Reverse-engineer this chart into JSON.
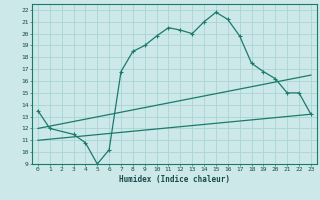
{
  "xlabel": "Humidex (Indice chaleur)",
  "bg_color": "#cce8e8",
  "line_color": "#1a7a6e",
  "grid_color": "#aad4d4",
  "xlim": [
    -0.5,
    23.5
  ],
  "ylim": [
    9,
    22.5
  ],
  "xticks": [
    0,
    1,
    2,
    3,
    4,
    5,
    6,
    7,
    8,
    9,
    10,
    11,
    12,
    13,
    14,
    15,
    16,
    17,
    18,
    19,
    20,
    21,
    22,
    23
  ],
  "yticks": [
    9,
    10,
    11,
    12,
    13,
    14,
    15,
    16,
    17,
    18,
    19,
    20,
    21,
    22
  ],
  "line1_x": [
    0,
    1,
    3,
    4,
    5,
    6,
    7,
    8,
    9,
    10,
    11,
    12,
    13,
    14,
    15,
    16,
    17,
    18,
    19,
    20,
    21,
    22,
    23
  ],
  "line1_y": [
    13.5,
    12.0,
    11.5,
    10.8,
    9.0,
    10.2,
    16.8,
    18.5,
    19.0,
    19.8,
    20.5,
    20.3,
    20.0,
    21.0,
    21.8,
    21.2,
    19.8,
    17.5,
    16.8,
    16.2,
    15.0,
    15.0,
    13.2
  ],
  "line2_x": [
    0,
    23
  ],
  "line2_y": [
    12.0,
    16.5
  ],
  "line3_x": [
    0,
    23
  ],
  "line3_y": [
    11.0,
    13.2
  ]
}
